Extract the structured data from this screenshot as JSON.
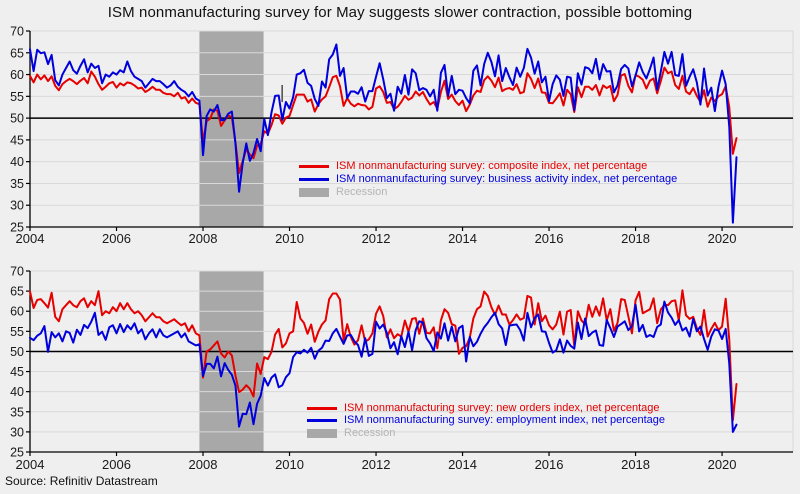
{
  "title": "ISM nonmanufacturing survey for May suggests slower contraction, possible bottoming",
  "source": "Source: Refinitiv Datastream",
  "chart_data": [
    {
      "type": "line",
      "position": "top",
      "xlim": [
        2004,
        2021.64
      ],
      "ylim": [
        25,
        70
      ],
      "yticks": [
        25,
        30,
        35,
        40,
        45,
        50,
        55,
        60,
        65,
        70
      ],
      "xticks": [
        2004,
        2006,
        2008,
        2010,
        2012,
        2014,
        2016,
        2018,
        2020
      ],
      "reference_line": 50,
      "grid": "horizontal",
      "legend_position": "inside-center",
      "x_start": 2004.0,
      "x_step": 0.0833333,
      "x_end_of_data": 2020.417,
      "recession_band": {
        "start": 2007.917,
        "end": 2009.4,
        "label": "Recession",
        "color": "#a8a8a8",
        "label_color": "#b4b4b4"
      },
      "artifact_tick": {
        "x": 2009.83,
        "from": 53.7,
        "to": 57.6,
        "color": "#555555"
      },
      "series": [
        {
          "name": "ISM nonmanufacturing survey: composite index, net percentage",
          "color": "#e60000",
          "values": [
            59.7,
            58.2,
            60.0,
            58.9,
            59.8,
            58.5,
            59.6,
            57.4,
            56.4,
            57.8,
            58.5,
            59.0,
            58.5,
            57.8,
            58.6,
            59.2,
            58.0,
            60.7,
            59.5,
            57.8,
            56.5,
            57.2,
            58.0,
            58.3,
            57.0,
            58.0,
            57.5,
            58.2,
            58.0,
            57.5,
            56.8,
            57.0,
            56.0,
            56.5,
            57.2,
            56.5,
            56.5,
            55.8,
            55.5,
            55.5,
            55.0,
            55.8,
            54.5,
            54.8,
            53.5,
            54.5,
            53.5,
            53.2,
            44.6,
            49.3,
            49.9,
            52.0,
            51.7,
            48.2,
            49.5,
            50.6,
            50.2,
            44.4,
            37.4,
            40.1,
            42.9,
            41.6,
            40.8,
            43.7,
            44.0,
            47.0,
            46.4,
            48.4,
            50.9,
            50.6,
            48.7,
            50.1,
            50.5,
            53.0,
            55.4,
            55.4,
            55.4,
            53.8,
            54.3,
            51.5,
            53.2,
            54.3,
            55.0,
            57.1,
            59.4,
            59.7,
            57.3,
            52.8,
            54.6,
            53.3,
            52.7,
            53.3,
            53.0,
            52.9,
            52.0,
            52.6,
            56.8,
            57.3,
            56.0,
            53.5,
            53.7,
            52.1,
            52.6,
            53.7,
            55.1,
            54.2,
            54.7,
            56.1,
            55.2,
            56.0,
            54.4,
            53.1,
            53.7,
            52.2,
            56.0,
            58.6,
            54.4,
            55.4,
            53.9,
            53.0,
            54.0,
            51.6,
            53.1,
            55.2,
            56.3,
            56.0,
            58.7,
            59.6,
            58.6,
            57.1,
            59.3,
            56.2,
            56.7,
            56.9,
            56.5,
            57.8,
            55.7,
            56.0,
            60.3,
            59.0,
            56.9,
            59.1,
            55.9,
            55.8,
            53.5,
            53.4,
            54.5,
            55.7,
            52.9,
            56.5,
            55.5,
            51.4,
            57.1,
            54.8,
            57.2,
            57.2,
            56.5,
            57.6,
            55.2,
            57.5,
            56.9,
            57.4,
            53.9,
            55.3,
            59.8,
            60.1,
            57.4,
            55.9,
            59.9,
            59.5,
            58.8,
            56.8,
            58.6,
            59.1,
            55.7,
            58.5,
            61.6,
            60.3,
            60.7,
            57.6,
            56.7,
            59.7,
            56.1,
            55.5,
            56.9,
            55.1,
            53.7,
            56.4,
            52.6,
            54.7,
            53.9,
            55.0,
            55.5,
            57.3,
            52.5,
            41.8,
            45.4
          ]
        },
        {
          "name": "ISM nonmanufacturing survey: business activity index, net percentage",
          "color": "#0000dd",
          "values": [
            65.8,
            60.8,
            65.7,
            64.9,
            65.1,
            62.4,
            64.5,
            58.7,
            57.5,
            60.0,
            61.5,
            63.0,
            61.0,
            60.2,
            62.0,
            63.5,
            60.5,
            62.5,
            61.5,
            62.0,
            58.0,
            60.0,
            59.5,
            60.5,
            60.0,
            61.0,
            60.5,
            63.0,
            60.8,
            59.5,
            59.0,
            58.5,
            57.0,
            58.0,
            59.0,
            58.5,
            58.5,
            57.8,
            57.0,
            57.5,
            58.5,
            57.2,
            56.5,
            56.0,
            55.0,
            56.0,
            54.5,
            54.0,
            41.5,
            50.5,
            52.0,
            51.5,
            53.0,
            49.5,
            49.6,
            51.0,
            51.5,
            44.2,
            33.1,
            39.6,
            44.2,
            40.2,
            42.0,
            45.2,
            42.4,
            49.8,
            46.1,
            51.3,
            55.1,
            55.2,
            49.6,
            53.7,
            52.2,
            54.8,
            60.0,
            60.3,
            61.1,
            58.1,
            57.4,
            54.4,
            52.8,
            58.4,
            57.0,
            63.5,
            64.6,
            66.9,
            59.7,
            61.5,
            54.6,
            56.1,
            56.1,
            55.6,
            57.1,
            53.8,
            56.2,
            56.2,
            59.5,
            62.6,
            58.9,
            54.6,
            55.6,
            51.7,
            57.2,
            55.6,
            59.9,
            55.4,
            61.2,
            60.3,
            56.4,
            56.9,
            56.5,
            55.0,
            56.5,
            51.7,
            60.4,
            62.2,
            55.1,
            59.7,
            55.5,
            56.5,
            56.3,
            54.6,
            53.4,
            60.9,
            62.1,
            57.5,
            62.4,
            65.0,
            62.9,
            59.6,
            64.4,
            58.5,
            61.5,
            59.4,
            57.6,
            61.6,
            59.5,
            61.5,
            65.9,
            63.9,
            60.2,
            63.0,
            58.2,
            59.5,
            53.9,
            57.8,
            59.8,
            58.8,
            55.1,
            59.5,
            59.3,
            51.8,
            60.3,
            57.7,
            61.7,
            61.4,
            60.3,
            63.6,
            58.9,
            62.4,
            60.7,
            60.8,
            55.9,
            57.5,
            61.3,
            62.2,
            61.4,
            57.3,
            59.8,
            62.8,
            60.6,
            59.1,
            61.3,
            63.9,
            56.5,
            60.7,
            65.2,
            62.5,
            65.2,
            59.9,
            59.7,
            64.7,
            57.4,
            59.5,
            61.2,
            58.2,
            53.1,
            61.4,
            55.2,
            57.0,
            51.6,
            57.2,
            60.9,
            57.8,
            48.0,
            26.0,
            41.0
          ]
        }
      ]
    },
    {
      "type": "line",
      "position": "bottom",
      "xlim": [
        2004,
        2021.64
      ],
      "ylim": [
        25,
        70
      ],
      "yticks": [
        25,
        30,
        35,
        40,
        45,
        50,
        55,
        60,
        65,
        70
      ],
      "xticks": [
        2004,
        2006,
        2008,
        2010,
        2012,
        2014,
        2016,
        2018,
        2020
      ],
      "reference_line": 50,
      "grid": "horizontal",
      "legend_position": "inside-center",
      "x_start": 2004.0,
      "x_step": 0.0833333,
      "x_end_of_data": 2020.417,
      "recession_band": {
        "start": 2007.917,
        "end": 2009.4,
        "label": "Recession",
        "color": "#a8a8a8",
        "label_color": "#b4b4b4"
      },
      "series": [
        {
          "name": "ISM nonmanufacturing survey: new orders index, net percentage",
          "color": "#e60000",
          "values": [
            64.9,
            60.8,
            62.8,
            63.0,
            62.0,
            60.9,
            64.6,
            58.6,
            57.5,
            60.5,
            61.5,
            62.5,
            61.5,
            61.0,
            62.5,
            63.2,
            61.0,
            62.5,
            61.5,
            65.0,
            59.0,
            60.0,
            59.5,
            61.0,
            60.0,
            62.0,
            60.5,
            62.0,
            60.5,
            59.5,
            60.0,
            59.0,
            57.5,
            58.5,
            59.5,
            58.5,
            58.5,
            57.5,
            57.0,
            57.5,
            58.0,
            57.2,
            56.5,
            57.0,
            55.0,
            56.5,
            54.5,
            54.0,
            43.5,
            50.0,
            50.5,
            51.5,
            52.5,
            49.5,
            48.5,
            50.0,
            49.0,
            44.0,
            39.9,
            40.5,
            41.6,
            40.7,
            38.8,
            47.0,
            44.4,
            48.6,
            48.1,
            49.9,
            54.2,
            55.6,
            51.0,
            52.0,
            54.5,
            55.0,
            62.3,
            58.2,
            57.1,
            54.4,
            56.7,
            52.4,
            54.9,
            56.7,
            57.7,
            63.0,
            64.4,
            64.4,
            62.9,
            52.7,
            56.8,
            53.6,
            51.7,
            52.8,
            56.5,
            52.4,
            53.0,
            54.5,
            59.4,
            61.2,
            58.8,
            53.5,
            55.5,
            53.3,
            54.3,
            53.7,
            57.7,
            54.9,
            58.1,
            58.3,
            54.4,
            58.2,
            54.6,
            54.5,
            56.0,
            50.8,
            57.7,
            60.5,
            59.6,
            56.8,
            56.4,
            49.4,
            50.9,
            51.3,
            53.4,
            58.2,
            60.5,
            61.2,
            64.9,
            63.8,
            61.0,
            59.1,
            61.4,
            59.2,
            59.2,
            56.7,
            57.8,
            59.2,
            57.9,
            58.3,
            63.8,
            63.4,
            56.7,
            62.0,
            57.5,
            58.9,
            56.5,
            55.5,
            56.7,
            59.9,
            54.2,
            59.9,
            60.3,
            51.4,
            60.0,
            57.7,
            56.7,
            61.6,
            58.6,
            61.2,
            58.9,
            63.2,
            57.7,
            60.5,
            55.1,
            57.1,
            63.0,
            62.8,
            58.7,
            54.5,
            62.7,
            64.8,
            59.5,
            60.0,
            60.5,
            63.2,
            57.0,
            60.4,
            61.6,
            61.5,
            62.5,
            62.7,
            57.7,
            65.2,
            59.0,
            58.1,
            58.6,
            55.8,
            54.1,
            60.3,
            53.7,
            55.6,
            57.1,
            55.3,
            56.2,
            63.1,
            52.9,
            32.9,
            41.9
          ]
        },
        {
          "name": "ISM nonmanufacturing survey: employment index, net percentage",
          "color": "#0000dd",
          "values": [
            53.4,
            52.8,
            53.9,
            54.5,
            56.3,
            49.9,
            54.8,
            53.5,
            54.5,
            52.5,
            55.0,
            54.6,
            52.2,
            55.4,
            54.1,
            56.6,
            55.8,
            57.4,
            59.6,
            54.1,
            54.9,
            52.9,
            56.0,
            56.5,
            54.5,
            56.8,
            54.8,
            56.5,
            55.5,
            57.0,
            54.5,
            55.5,
            53.0,
            54.5,
            55.5,
            53.5,
            55.5,
            54.0,
            53.5,
            54.0,
            54.5,
            55.0,
            53.5,
            54.5,
            52.5,
            52.0,
            51.5,
            51.8,
            43.9,
            46.9,
            46.9,
            45.8,
            48.7,
            43.8,
            47.1,
            45.4,
            44.2,
            41.5,
            31.3,
            34.5,
            34.4,
            37.3,
            31.9,
            37.0,
            39.0,
            43.4,
            41.5,
            43.5,
            44.3,
            41.1,
            41.6,
            43.6,
            44.6,
            48.6,
            49.8,
            49.5,
            50.4,
            49.7,
            50.9,
            48.2,
            50.2,
            50.9,
            52.7,
            52.6,
            54.5,
            55.6,
            53.7,
            51.9,
            54.0,
            54.1,
            52.5,
            51.6,
            48.7,
            53.3,
            48.9,
            49.4,
            57.4,
            55.7,
            56.7,
            54.6,
            50.8,
            52.3,
            49.3,
            53.8,
            51.1,
            54.9,
            50.3,
            55.3,
            57.5,
            57.2,
            53.3,
            52.0,
            50.1,
            54.7,
            53.2,
            57.0,
            52.7,
            56.2,
            52.5,
            55.8,
            56.4,
            47.5,
            53.6,
            51.3,
            52.4,
            54.4,
            56.0,
            57.1,
            58.5,
            59.6,
            56.8,
            55.7,
            51.6,
            56.4,
            56.6,
            56.7,
            55.3,
            52.7,
            59.6,
            56.0,
            58.3,
            59.2,
            55.0,
            54.9,
            52.1,
            49.7,
            50.3,
            53.0,
            49.7,
            52.7,
            51.4,
            50.7,
            57.2,
            53.1,
            58.2,
            53.8,
            54.7,
            55.2,
            51.6,
            51.4,
            57.8,
            55.8,
            53.6,
            56.2,
            56.8,
            57.5,
            55.3,
            56.3,
            61.6,
            55.0,
            56.6,
            53.6,
            54.1,
            53.6,
            56.1,
            56.7,
            62.4,
            59.7,
            58.4,
            56.6,
            57.8,
            55.2,
            55.9,
            53.7,
            58.1,
            55.0,
            56.2,
            53.1,
            50.4,
            53.7,
            55.5,
            55.2,
            53.1,
            55.6,
            47.0,
            30.0,
            31.8
          ]
        }
      ]
    }
  ],
  "style": {
    "background": "#efefef",
    "grid_color": "#d9d9d9",
    "axis_color": "#000000",
    "tick_label_color": "#1a1a1a",
    "reference_line_color": "#000000"
  }
}
